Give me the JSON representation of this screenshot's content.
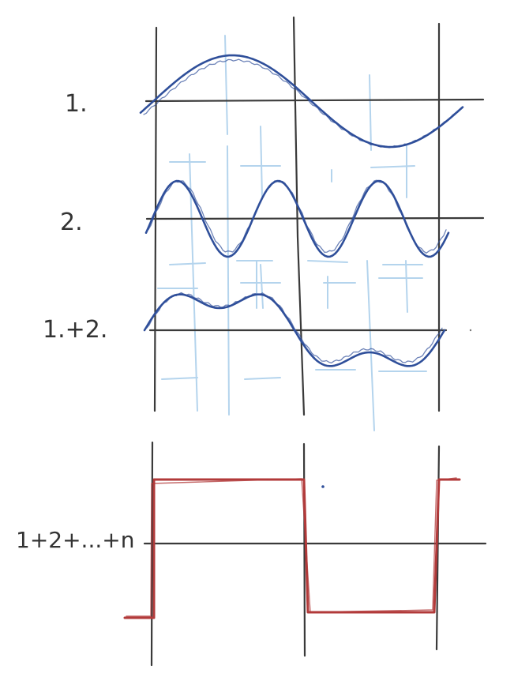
{
  "diagram": {
    "labels": {
      "wave1": "1.",
      "wave2": "2.",
      "sum12": "1.+2.",
      "sum_n": "1+2+...+n"
    },
    "colors": {
      "grid": "#3a3a3a",
      "construction": "#a8cdea",
      "wave": "#2f4f9a",
      "square": "#b23a3a",
      "text": "#333333"
    },
    "signals": [
      {
        "id": "wave1",
        "kind": "sine",
        "harmonics": [
          1
        ]
      },
      {
        "id": "wave2",
        "kind": "sine",
        "harmonics": [
          3
        ]
      },
      {
        "id": "sum12",
        "kind": "sum",
        "harmonics": [
          1,
          3
        ]
      },
      {
        "id": "sum_n",
        "kind": "square-wave",
        "harmonics": "1..n"
      }
    ]
  }
}
